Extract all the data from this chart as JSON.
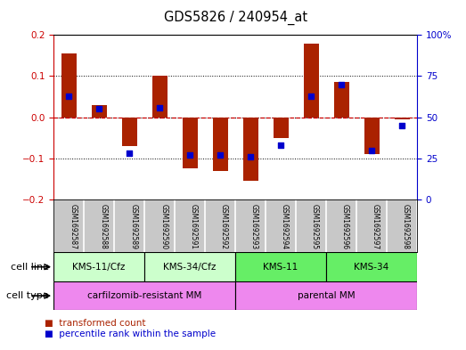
{
  "title": "GDS5826 / 240954_at",
  "samples": [
    "GSM1692587",
    "GSM1692588",
    "GSM1692589",
    "GSM1692590",
    "GSM1692591",
    "GSM1692592",
    "GSM1692593",
    "GSM1692594",
    "GSM1692595",
    "GSM1692596",
    "GSM1692597",
    "GSM1692598"
  ],
  "transformed_count": [
    0.155,
    0.03,
    -0.07,
    0.1,
    -0.125,
    -0.13,
    -0.155,
    -0.05,
    0.18,
    0.085,
    -0.09,
    -0.005
  ],
  "percentile_rank": [
    63,
    55,
    28,
    56,
    27,
    27,
    26,
    33,
    63,
    70,
    30,
    45
  ],
  "bar_color": "#aa2200",
  "dot_color": "#0000cc",
  "ylim_left": [
    -0.2,
    0.2
  ],
  "ylim_right": [
    0,
    100
  ],
  "yticks_left": [
    -0.2,
    -0.1,
    0.0,
    0.1,
    0.2
  ],
  "yticks_right": [
    0,
    25,
    50,
    75,
    100
  ],
  "ytick_labels_right": [
    "0",
    "25",
    "50",
    "75",
    "100%"
  ],
  "cell_line_groups": [
    {
      "label": "KMS-11/Cfz",
      "start": 0,
      "end": 3,
      "color": "#ccffcc"
    },
    {
      "label": "KMS-34/Cfz",
      "start": 3,
      "end": 6,
      "color": "#ccffcc"
    },
    {
      "label": "KMS-11",
      "start": 6,
      "end": 9,
      "color": "#66ee66"
    },
    {
      "label": "KMS-34",
      "start": 9,
      "end": 12,
      "color": "#66ee66"
    }
  ],
  "cell_type_groups": [
    {
      "label": "carfilzomib-resistant MM",
      "start": 0,
      "end": 6,
      "color": "#ee88ee"
    },
    {
      "label": "parental MM",
      "start": 6,
      "end": 12,
      "color": "#ee88ee"
    }
  ],
  "legend_items": [
    {
      "label": "transformed count",
      "color": "#aa2200"
    },
    {
      "label": "percentile rank within the sample",
      "color": "#0000cc"
    }
  ],
  "bg_color": "#ffffff",
  "bar_width": 0.5,
  "cell_line_row_label": "cell line",
  "cell_type_row_label": "cell type",
  "sample_bg_color": "#c8c8c8",
  "sample_border_color": "#ffffff"
}
